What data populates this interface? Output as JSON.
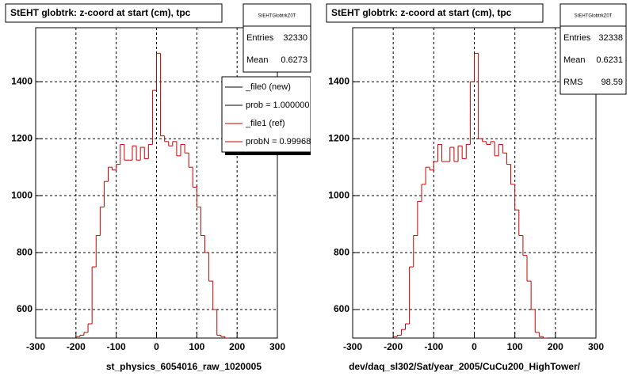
{
  "chart_data": [
    {
      "type": "histogram",
      "title": "StEHT globtrk: z-coord at start (cm), tpc",
      "x_label": "st_physics_6054016_raw_1020005",
      "color": "#cc0000",
      "bins": [
        -200,
        -190,
        -180,
        -170,
        -160,
        -150,
        -140,
        -130,
        -120,
        -110,
        -100,
        -90,
        -80,
        -70,
        -60,
        -50,
        -40,
        -30,
        -20,
        -10,
        0,
        10,
        20,
        30,
        40,
        50,
        60,
        70,
        80,
        90,
        100,
        110,
        120,
        130,
        140,
        150,
        160,
        170,
        180,
        190,
        200
      ],
      "values": [
        505,
        510,
        520,
        550,
        750,
        860,
        960,
        1050,
        1100,
        1090,
        1110,
        1180,
        1125,
        1125,
        1175,
        1125,
        1170,
        1130,
        1180,
        1370,
        1500,
        1210,
        1190,
        1175,
        1190,
        1140,
        1180,
        1150,
        1100,
        1030,
        960,
        860,
        800,
        700,
        600,
        510,
        505,
        500,
        490,
        485
      ],
      "xlim": [
        -300,
        300
      ],
      "ylim": [
        500,
        1590
      ],
      "xticks": [
        -300,
        -200,
        -100,
        0,
        100,
        200,
        300
      ],
      "yticks": [
        600,
        800,
        1000,
        1200,
        1400
      ],
      "grid": true,
      "stats": {
        "title": "StEHTGlobtrkZ0T",
        "rows": [
          {
            "label": "Entries",
            "value": 32330
          },
          {
            "label": "Mean",
            "value": 0.6273
          }
        ]
      },
      "legend": [
        {
          "label": "_file0 (new)",
          "color": "#000000"
        },
        {
          "label": "prob = 1.000000",
          "color": "#000000"
        },
        {
          "label": "_file1 (ref)",
          "color": "#cc0000"
        },
        {
          "label": "probN = 0.99968",
          "color": "#cc0000"
        }
      ]
    },
    {
      "type": "histogram",
      "title": "StEHT globtrk: z-coord at start (cm), tpc",
      "x_label": "dev/daq_sl302/Sat/year_2005/CuCu200_HighTower/",
      "color": "#cc0000",
      "bins": [
        -200,
        -190,
        -180,
        -170,
        -160,
        -150,
        -140,
        -130,
        -120,
        -110,
        -100,
        -90,
        -80,
        -70,
        -60,
        -50,
        -40,
        -30,
        -20,
        -10,
        0,
        10,
        20,
        30,
        40,
        50,
        60,
        70,
        80,
        90,
        100,
        110,
        120,
        130,
        140,
        150,
        160,
        170,
        180,
        190,
        200
      ],
      "values": [
        505,
        510,
        530,
        550,
        750,
        860,
        980,
        1040,
        1100,
        1090,
        1120,
        1180,
        1120,
        1120,
        1170,
        1120,
        1175,
        1130,
        1180,
        1400,
        1500,
        1200,
        1190,
        1180,
        1190,
        1140,
        1180,
        1150,
        1110,
        1040,
        950,
        860,
        790,
        700,
        600,
        520,
        505,
        500,
        490,
        485
      ],
      "xlim": [
        -300,
        300
      ],
      "ylim": [
        500,
        1590
      ],
      "xticks": [
        -300,
        -200,
        -100,
        0,
        100,
        200,
        300
      ],
      "yticks": [
        600,
        800,
        1000,
        1200,
        1400
      ],
      "grid": true,
      "stats": {
        "title": "StEHTGlobtrkZ0T",
        "rows": [
          {
            "label": "Entries",
            "value": 32338
          },
          {
            "label": "Mean",
            "value": 0.6231
          },
          {
            "label": "RMS",
            "value": 98.59
          }
        ]
      }
    }
  ]
}
